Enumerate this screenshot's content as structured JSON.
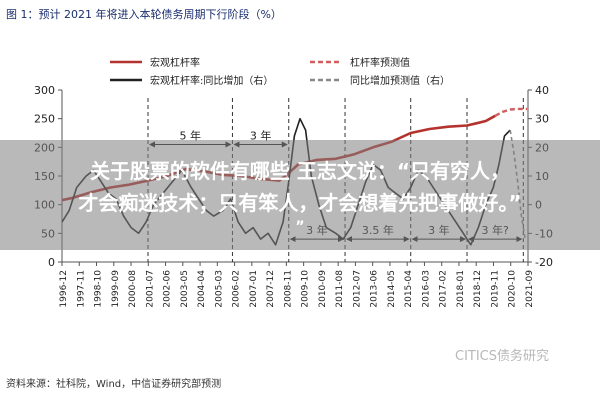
{
  "page": {
    "title": "图 1：预计 2021 年将进入本轮债务周期下行阶段（%）",
    "source": "资料来源：社科院，Wind，中信证券研究部预测",
    "watermark": "CITICS债务研究",
    "overlay_line1": "关于股票的软件有哪些 王志文说：“只有穷人，",
    "overlay_line2": "才会痴迷技术；只有笨人，才会想着先把事做好。”",
    "overlay_line3": "”"
  },
  "colors": {
    "leverage": "#b5332e",
    "yoy": "#222222",
    "leverage_forecast": "#d06060",
    "yoy_forecast": "#888888"
  },
  "chart_data": {
    "type": "line",
    "legend": [
      {
        "name": "宏观杠杆率",
        "style": "solid",
        "color": "#b5332e"
      },
      {
        "name": "杠杆率预测值",
        "style": "dashed",
        "color": "#d06060"
      },
      {
        "name": "宏观杠杆率:同比增加（右）",
        "style": "solid",
        "color": "#222222"
      },
      {
        "name": "同比增加预测值（右）",
        "style": "dashed",
        "color": "#888888"
      }
    ],
    "x_ticks": [
      "1996-12",
      "1997-11",
      "1998-10",
      "1999-09",
      "2000-08",
      "2001-07",
      "2002-06",
      "2003-05",
      "2004-04",
      "2005-03",
      "2006-02",
      "2007-01",
      "2007-12",
      "2008-11",
      "2009-10",
      "2010-09",
      "2011-08",
      "2012-07",
      "2013-06",
      "2014-05",
      "2015-04",
      "2016-03",
      "2017-02",
      "2018-01",
      "2018-12",
      "2019-11",
      "2020-10",
      "2021-09"
    ],
    "x_range": [
      1996.917,
      2021.75
    ],
    "y_left": {
      "range": [
        0,
        300
      ],
      "ticks": [
        0,
        50,
        100,
        150,
        200,
        250,
        300
      ]
    },
    "y_right": {
      "range": [
        -20,
        40
      ],
      "ticks": [
        -20,
        -10,
        0,
        10,
        20,
        30,
        40
      ]
    },
    "cycle_annotations": [
      {
        "label": "5 年",
        "from": 2001.5,
        "to": 2006.0,
        "y": 205
      },
      {
        "label": "3 年",
        "from": 2006.0,
        "to": 2009.0,
        "y": 205
      },
      {
        "label": "3 年",
        "from": 2009.0,
        "to": 2012.0,
        "y": 40
      },
      {
        "label": "3.5 年",
        "from": 2012.0,
        "to": 2015.5,
        "y": 40
      },
      {
        "label": "3 年",
        "from": 2015.5,
        "to": 2018.5,
        "y": 40
      },
      {
        "label": "3 年?",
        "from": 2018.5,
        "to": 2021.5,
        "y": 40
      }
    ],
    "cycle_dividers": [
      2001.5,
      2006.0,
      2009.0,
      2012.0,
      2015.5,
      2018.5,
      2021.5
    ],
    "series": [
      {
        "name": "宏观杠杆率",
        "axis": "left",
        "points": [
          [
            1996.92,
            108
          ],
          [
            1997.5,
            112
          ],
          [
            1998.5,
            122
          ],
          [
            1999.5,
            130
          ],
          [
            2000.5,
            135
          ],
          [
            2001.5,
            142
          ],
          [
            2002.5,
            150
          ],
          [
            2003.5,
            162
          ],
          [
            2004.5,
            158
          ],
          [
            2005.5,
            152
          ],
          [
            2006.5,
            150
          ],
          [
            2007.5,
            145
          ],
          [
            2008.5,
            142
          ],
          [
            2009.0,
            155
          ],
          [
            2009.5,
            170
          ],
          [
            2010.5,
            178
          ],
          [
            2011.5,
            180
          ],
          [
            2012.5,
            188
          ],
          [
            2013.5,
            200
          ],
          [
            2014.5,
            210
          ],
          [
            2015.5,
            225
          ],
          [
            2016.5,
            232
          ],
          [
            2017.5,
            236
          ],
          [
            2018.5,
            238
          ],
          [
            2019.0,
            242
          ],
          [
            2019.5,
            246
          ],
          [
            2020.0,
            255
          ]
        ]
      },
      {
        "name": "杠杆率预测值",
        "axis": "left",
        "points": [
          [
            2020.0,
            255
          ],
          [
            2020.4,
            262
          ],
          [
            2020.8,
            266
          ],
          [
            2021.2,
            267
          ],
          [
            2021.7,
            267
          ]
        ]
      },
      {
        "name": "宏观杠杆率:同比增加（右）",
        "axis": "right",
        "points": [
          [
            1996.92,
            -6
          ],
          [
            1997.3,
            -2
          ],
          [
            1997.7,
            6
          ],
          [
            1998.2,
            10
          ],
          [
            1998.6,
            12
          ],
          [
            1999.0,
            8
          ],
          [
            1999.4,
            4
          ],
          [
            1999.8,
            2
          ],
          [
            2000.2,
            -4
          ],
          [
            2000.6,
            -8
          ],
          [
            2001.0,
            -10
          ],
          [
            2001.4,
            -6
          ],
          [
            2001.8,
            0
          ],
          [
            2002.3,
            4
          ],
          [
            2002.8,
            8
          ],
          [
            2003.3,
            12
          ],
          [
            2003.8,
            6
          ],
          [
            2004.2,
            2
          ],
          [
            2004.6,
            -2
          ],
          [
            2005.0,
            -4
          ],
          [
            2005.5,
            -2
          ],
          [
            2005.9,
            2
          ],
          [
            2006.3,
            -6
          ],
          [
            2006.7,
            -10
          ],
          [
            2007.1,
            -8
          ],
          [
            2007.5,
            -12
          ],
          [
            2007.9,
            -10
          ],
          [
            2008.3,
            -14
          ],
          [
            2008.7,
            -6
          ],
          [
            2009.0,
            8
          ],
          [
            2009.3,
            24
          ],
          [
            2009.6,
            30
          ],
          [
            2009.9,
            26
          ],
          [
            2010.2,
            10
          ],
          [
            2010.6,
            0
          ],
          [
            2011.0,
            -8
          ],
          [
            2011.5,
            -10
          ],
          [
            2011.9,
            -12
          ],
          [
            2012.3,
            -8
          ],
          [
            2012.7,
            0
          ],
          [
            2013.1,
            8
          ],
          [
            2013.5,
            14
          ],
          [
            2013.9,
            12
          ],
          [
            2014.3,
            6
          ],
          [
            2014.7,
            4
          ],
          [
            2015.1,
            2
          ],
          [
            2015.5,
            6
          ],
          [
            2015.9,
            12
          ],
          [
            2016.3,
            10
          ],
          [
            2016.7,
            6
          ],
          [
            2017.1,
            2
          ],
          [
            2017.5,
            -2
          ],
          [
            2017.9,
            -6
          ],
          [
            2018.3,
            -10
          ],
          [
            2018.7,
            -14
          ],
          [
            2019.1,
            -8
          ],
          [
            2019.5,
            0
          ],
          [
            2019.9,
            6
          ],
          [
            2020.2,
            14
          ],
          [
            2020.5,
            24
          ],
          [
            2020.8,
            26
          ]
        ]
      },
      {
        "name": "同比增加预测值（右）",
        "axis": "right",
        "points": [
          [
            2020.8,
            26
          ],
          [
            2021.0,
            18
          ],
          [
            2021.2,
            8
          ],
          [
            2021.4,
            -4
          ],
          [
            2021.6,
            -12
          ]
        ]
      }
    ]
  }
}
